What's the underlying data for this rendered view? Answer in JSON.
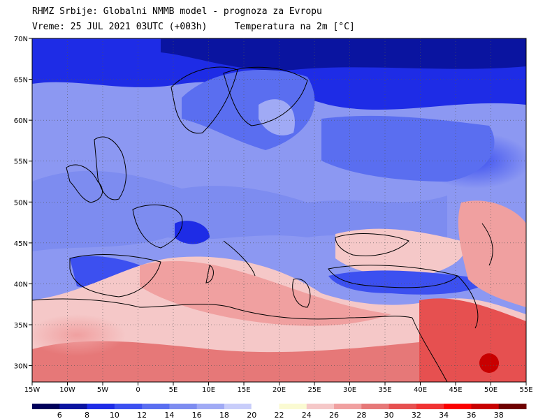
{
  "header": {
    "title": "RHMZ Srbije: Globalni NMMB model - prognoza za Evropu",
    "valid_time": "Vreme: 25 JUL 2021 03UTC (+003h)",
    "field": "Temperatura na 2m [°C]"
  },
  "map": {
    "lon_range": [
      -15,
      55
    ],
    "lat_range": [
      28,
      70
    ],
    "lat_ticks": [
      {
        "value": 70,
        "label": "70N"
      },
      {
        "value": 65,
        "label": "65N"
      },
      {
        "value": 60,
        "label": "60N"
      },
      {
        "value": 55,
        "label": "55N"
      },
      {
        "value": 50,
        "label": "50N"
      },
      {
        "value": 45,
        "label": "45N"
      },
      {
        "value": 40,
        "label": "40N"
      },
      {
        "value": 35,
        "label": "35N"
      },
      {
        "value": 30,
        "label": "30N"
      }
    ],
    "lon_ticks": [
      {
        "value": -15,
        "label": "15W"
      },
      {
        "value": -10,
        "label": "10W"
      },
      {
        "value": -5,
        "label": "5W"
      },
      {
        "value": 0,
        "label": "0"
      },
      {
        "value": 5,
        "label": "5E"
      },
      {
        "value": 10,
        "label": "10E"
      },
      {
        "value": 15,
        "label": "15E"
      },
      {
        "value": 20,
        "label": "20E"
      },
      {
        "value": 25,
        "label": "25E"
      },
      {
        "value": 30,
        "label": "30E"
      },
      {
        "value": 35,
        "label": "35E"
      },
      {
        "value": 40,
        "label": "40E"
      },
      {
        "value": 45,
        "label": "45E"
      },
      {
        "value": 50,
        "label": "50E"
      },
      {
        "value": 55,
        "label": "55E"
      }
    ],
    "grid": "dotted"
  },
  "colorbar": {
    "labels": [
      "6",
      "8",
      "10",
      "12",
      "14",
      "16",
      "18",
      "20",
      "22",
      "24",
      "26",
      "28",
      "30",
      "32",
      "34",
      "36",
      "38"
    ],
    "colors": [
      "#00005a",
      "#0a14a0",
      "#1e2ce6",
      "#3c50f0",
      "#5a6ef0",
      "#7d8cf0",
      "#a0aaf5",
      "#c8cdfa",
      "#ffffff",
      "#fafad2",
      "#f5c8c8",
      "#f0a0a0",
      "#e67878",
      "#e65050",
      "#f03232",
      "#fa0000",
      "#c80000",
      "#6e0000"
    ]
  }
}
